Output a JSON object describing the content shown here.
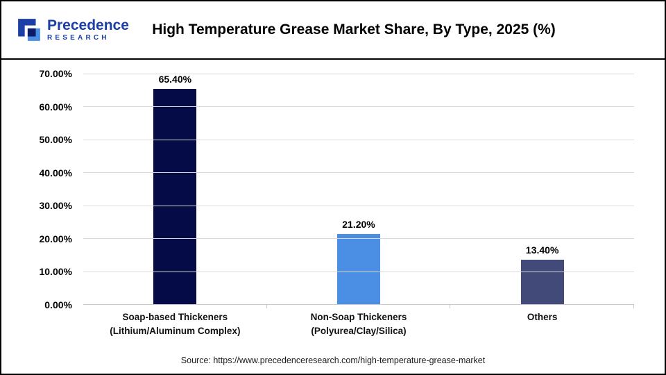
{
  "logo": {
    "name": "Precedence",
    "subtitle": "RESEARCH"
  },
  "header": {
    "title": "High Temperature Grease Market Share, By Type, 2025 (%)"
  },
  "footer": {
    "source": "Source: https://www.precedenceresearch.com/high-temperature-grease-market"
  },
  "chart_data": {
    "type": "bar",
    "title": "High Temperature Grease Market Share, By Type, 2025 (%)",
    "categories": [
      "Soap-based Thickeners (Lithium/Aluminum Complex)",
      "Non-Soap Thickeners (Polyurea/Clay/Silica)",
      "Others"
    ],
    "category_lines": [
      [
        "Soap-based Thickeners",
        "(Lithium/Aluminum Complex)"
      ],
      [
        "Non-Soap Thickeners",
        "(Polyurea/Clay/Silica)"
      ],
      [
        "Others"
      ]
    ],
    "values": [
      65.4,
      21.2,
      13.4
    ],
    "value_labels": [
      "65.40%",
      "21.20%",
      "13.40%"
    ],
    "bar_colors": [
      "#050b46",
      "#4a8fe4",
      "#414a78"
    ],
    "ylim": [
      0,
      70
    ],
    "yticks": [
      {
        "value": 70,
        "label": "70.00%"
      },
      {
        "value": 60,
        "label": "60.00%"
      },
      {
        "value": 50,
        "label": "50.00%"
      },
      {
        "value": 40,
        "label": "40.00%"
      },
      {
        "value": 30,
        "label": "30.00%"
      },
      {
        "value": 20,
        "label": "20.00%"
      },
      {
        "value": 10,
        "label": "10.00%"
      },
      {
        "value": 0,
        "label": "0.00%"
      }
    ],
    "grid": true,
    "legend": "none",
    "xlabel": "",
    "ylabel": ""
  },
  "grid_color": "#d9d9d9"
}
